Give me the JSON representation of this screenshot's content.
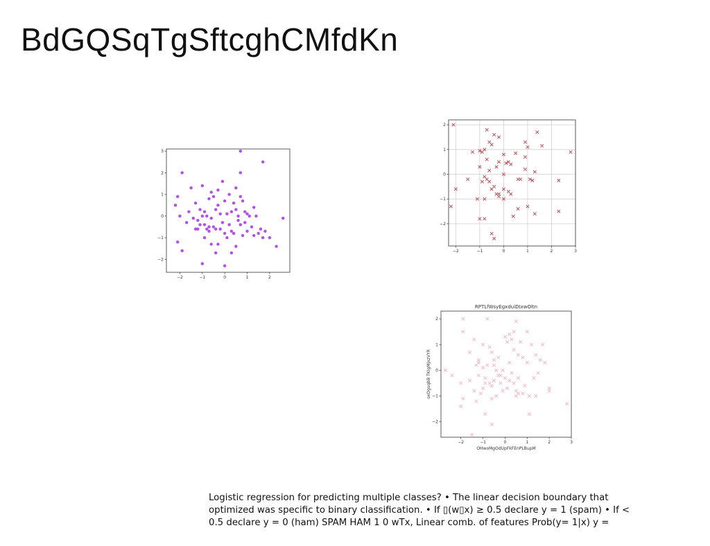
{
  "slide": {
    "title": "BdGQSqTgSftcghCMfdKn",
    "body_text": "Logistic regression for predicting multiple classes? • The linear decision boundary that optimized was specific to binary classification. • If ▯(w▯x) ≥ 0.5 declare y = 1 (spam) • If < 0.5 declare y = 0 (ham) SPAM HAM 1 0 wTx, Linear comb. of features Prob(y= 1|x) y ="
  },
  "chart_data": [
    {
      "type": "scatter",
      "title": "",
      "xlabel": "",
      "ylabel": "",
      "marker": "circle",
      "color": "#b44ee6",
      "grid": false,
      "xlim": [
        -2.6,
        2.9
      ],
      "ylim": [
        -2.6,
        3.1
      ],
      "xticks": [
        "−2",
        "−1",
        "0",
        "1",
        "2"
      ],
      "yticks": [
        "−2",
        "−1",
        "0",
        "1",
        "2",
        "3"
      ],
      "x": [
        0.7,
        1.7,
        -1.9,
        0.7,
        -1.0,
        -1.5,
        -0.1,
        -2.2,
        -0.3,
        -0.6,
        -0.5,
        0.5,
        0.2,
        0.7,
        -2.1,
        -0.7,
        0.4,
        -0.3,
        0.0,
        0.8,
        1.3,
        -1.1,
        -0.4,
        -1.3,
        -1.6,
        -0.9,
        -0.8,
        0.1,
        0.3,
        0.5,
        0.9,
        1.1,
        1.4,
        -0.2,
        0.6,
        1.0,
        -2.0,
        -1.4,
        -1.2,
        -1.0,
        -0.6,
        -0.1,
        0.2,
        0.6,
        0.9,
        1.2,
        1.6,
        2.6,
        -2.1,
        -1.7,
        -1.3,
        -0.9,
        -0.5,
        -0.8,
        -0.4,
        0.0,
        0.4,
        0.8,
        1.3,
        1.7,
        -0.3,
        -0.6,
        0.1,
        0.5,
        1.0,
        1.5,
        2.0,
        -1.2,
        -0.7,
        0.3,
        -0.2,
        -0.9,
        -1.1,
        0.7,
        1.8,
        2.3,
        -1.9,
        0.3,
        -1.0,
        0.0,
        -0.4,
        -0.7
      ],
      "y": [
        3.0,
        2.5,
        2.0,
        2.0,
        1.4,
        1.3,
        1.6,
        0.5,
        1.2,
        1.1,
        0.9,
        1.3,
        1.0,
        0.9,
        0.9,
        0.8,
        0.6,
        0.5,
        0.7,
        0.7,
        0.4,
        0.3,
        0.3,
        0.6,
        0.2,
        0.2,
        0.0,
        0.1,
        0.2,
        0.3,
        0.2,
        0.0,
        0.0,
        0.1,
        0.0,
        0.1,
        0.0,
        -0.1,
        -0.2,
        0.0,
        -0.1,
        -0.3,
        -0.4,
        -0.2,
        -0.3,
        -0.5,
        -0.6,
        -0.1,
        -1.2,
        -0.3,
        -0.6,
        -0.4,
        -0.5,
        -0.6,
        -0.6,
        -0.8,
        -0.8,
        -0.9,
        -0.9,
        -1.0,
        -1.3,
        -1.3,
        -1.0,
        -1.4,
        -0.7,
        -0.8,
        -1.0,
        -0.6,
        -0.7,
        -0.7,
        -0.6,
        -1.0,
        -0.4,
        -0.4,
        -0.7,
        -1.4,
        -1.6,
        -1.7,
        -2.2,
        -2.3,
        -1.7,
        -0.5
      ]
    },
    {
      "type": "scatter",
      "title": "",
      "xlabel": "",
      "ylabel": "",
      "marker": "x",
      "color": "#c0505a",
      "grid": true,
      "xlim": [
        -2.3,
        3.0
      ],
      "ylim": [
        -2.9,
        2.2
      ],
      "xticks": [
        "−2",
        "−1",
        "0",
        "1",
        "2",
        "3"
      ],
      "yticks": [
        "−2",
        "−1",
        "0",
        "1",
        "2"
      ],
      "x": [
        -2.1,
        -0.7,
        -0.4,
        -0.2,
        1.4,
        -0.6,
        -0.5,
        0.9,
        1.0,
        1.6,
        -1.0,
        -0.9,
        -0.8,
        -1.3,
        2.8,
        0.0,
        0.5,
        0.9,
        -0.7,
        0.2,
        -0.2,
        0.1,
        -1.0,
        -0.3,
        0.3,
        0.9,
        -0.6,
        1.3,
        0.0,
        -0.8,
        -1.5,
        0.6,
        0.7,
        -0.7,
        -0.9,
        1.1,
        1.2,
        2.3,
        -0.6,
        -0.5,
        -0.4,
        0.0,
        -0.2,
        -2.0,
        -0.3,
        0.2,
        0.3,
        -0.2,
        0.0,
        -1.1,
        -0.8,
        0.6,
        1.0,
        2.3,
        -2.2,
        0.4,
        1.3,
        -1.0,
        -0.8,
        -0.5,
        -0.4
      ],
      "y": [
        2.0,
        1.8,
        1.6,
        1.5,
        1.7,
        1.3,
        1.2,
        1.3,
        1.1,
        1.15,
        0.95,
        0.9,
        1.0,
        0.9,
        0.9,
        0.8,
        0.85,
        0.7,
        0.6,
        0.5,
        0.5,
        0.45,
        0.3,
        0.3,
        0.4,
        0.2,
        0.15,
        0.1,
        0.0,
        -0.1,
        -0.2,
        -0.2,
        -0.2,
        -0.2,
        -0.3,
        -0.2,
        -0.25,
        -0.25,
        -0.3,
        -0.6,
        -0.5,
        -0.6,
        -0.8,
        -0.6,
        -0.8,
        -0.7,
        -0.8,
        -0.9,
        -1.0,
        -1.0,
        -1.0,
        -1.4,
        -1.3,
        -1.5,
        -1.3,
        -1.7,
        -1.6,
        -1.8,
        -1.8,
        -2.4,
        -2.6
      ]
    },
    {
      "type": "scatter",
      "title": "RPTLfWsyEgxduiDIxwOltn",
      "xlabel": "OHwoMgOdUpFkFEnPLBupM",
      "ylabel": "oxOgoqbB TKIgMjxzVYR",
      "marker": "x",
      "color": "#f2b6c8",
      "grid": false,
      "xlim": [
        -2.9,
        3.0
      ],
      "ylim": [
        -2.6,
        2.3
      ],
      "xticks": [
        "−2",
        "−1",
        "0",
        "1",
        "2",
        "3"
      ],
      "yticks": [
        "−2",
        "−1",
        "0",
        "1",
        "2"
      ],
      "x": [
        -1.9,
        -0.8,
        0.5,
        -1.9,
        0.4,
        0.2,
        0.0,
        1.0,
        -1.4,
        0.1,
        0.3,
        0.7,
        1.2,
        -1.0,
        -0.7,
        1.7,
        0.4,
        -1.6,
        -0.6,
        0.6,
        1.4,
        0.8,
        -0.3,
        -1.2,
        -0.5,
        0.2,
        1.0,
        1.6,
        1.8,
        -1.3,
        -0.8,
        -1.0,
        -0.4,
        -2.7,
        0.3,
        1.5,
        -2.4,
        -1.2,
        -0.9,
        -0.3,
        0.0,
        -0.5,
        0.6,
        1.3,
        -1.6,
        -0.7,
        -0.2,
        0.4,
        0.9,
        2.0,
        -1.0,
        -0.6,
        0.1,
        0.5,
        -1.4,
        -1.9,
        -0.1,
        0.6,
        -1.1,
        0.8,
        1.1,
        1.4,
        2.0,
        -2.0,
        -1.3,
        -0.4,
        -0.6,
        -0.9,
        0.5,
        -0.5,
        2.8,
        1.1,
        -0.9,
        -0.2,
        -1.2,
        -0.6,
        0.2,
        -1.5,
        -2.0,
        -0.1,
        -0.5
      ],
      "y": [
        2.0,
        2.0,
        1.9,
        1.5,
        1.5,
        1.4,
        1.3,
        1.5,
        1.2,
        1.1,
        1.2,
        1.1,
        1.0,
        1.0,
        0.9,
        1.0,
        0.8,
        0.7,
        0.7,
        0.6,
        0.6,
        0.5,
        0.5,
        0.4,
        0.4,
        0.3,
        0.3,
        0.4,
        0.3,
        0.2,
        0.2,
        0.1,
        0.0,
        0.0,
        -0.1,
        -0.1,
        -0.2,
        -0.2,
        -0.3,
        -0.2,
        -0.3,
        -0.4,
        -0.3,
        -0.3,
        -0.4,
        -0.5,
        -0.5,
        -0.5,
        -0.6,
        -0.7,
        -0.7,
        -0.6,
        -0.7,
        -0.8,
        -0.8,
        -1.1,
        -0.8,
        -0.9,
        -0.9,
        -0.9,
        -1.0,
        -1.0,
        -0.8,
        -1.4,
        -1.2,
        -1.0,
        -1.1,
        -1.7,
        -1.0,
        -0.4,
        -1.3,
        -1.7,
        -0.5,
        -0.2,
        0.3,
        -2.1,
        -0.4,
        -2.5,
        -0.5,
        0.0,
        0.2
      ]
    }
  ]
}
